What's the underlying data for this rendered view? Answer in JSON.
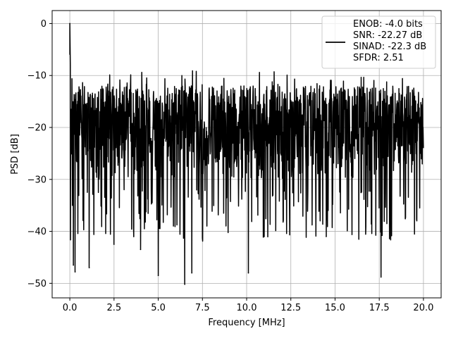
{
  "chart_data": {
    "type": "line",
    "title": "",
    "xlabel": "Frequency [MHz]",
    "ylabel": "PSD [dB]",
    "xlim": [
      -1.0,
      21.0
    ],
    "ylim": [
      -52.8,
      2.5
    ],
    "grid": true,
    "x_ticks": [
      0.0,
      2.5,
      5.0,
      7.5,
      10.0,
      12.5,
      15.0,
      17.5,
      20.0
    ],
    "x_tick_labels": [
      "0.0",
      "2.5",
      "5.0",
      "7.5",
      "10.0",
      "12.5",
      "15.0",
      "17.5",
      "20.0"
    ],
    "y_ticks": [
      0,
      -10,
      -20,
      -30,
      -40,
      -50
    ],
    "y_tick_labels": [
      "0",
      "−10",
      "−20",
      "−30",
      "−40",
      "−50"
    ],
    "legend_position": "top-right",
    "legend": {
      "line_color": "#000000",
      "lines": [
        "ENOB: -4.0 bits",
        "SNR: -22.27 dB",
        "SINAD: -22.3 dB",
        "SFDR: 2.51"
      ]
    },
    "series": [
      {
        "color": "#000000",
        "x_range": [
          0.0,
          20.0
        ],
        "peak": {
          "x": 0.0,
          "y": 0.0
        },
        "noise_floor_band": [
          -30.0,
          -12.0
        ],
        "notable_dips": [
          {
            "x": 0.2,
            "y": -46.5
          },
          {
            "x": 0.3,
            "y": -47.8
          },
          {
            "x": 1.1,
            "y": -47.0
          },
          {
            "x": 2.5,
            "y": -42.5
          },
          {
            "x": 4.0,
            "y": -43.5
          },
          {
            "x": 5.0,
            "y": -48.5
          },
          {
            "x": 6.5,
            "y": -50.2
          },
          {
            "x": 6.9,
            "y": -48.0
          },
          {
            "x": 10.1,
            "y": -48.0
          },
          {
            "x": 14.5,
            "y": -41.0
          },
          {
            "x": 17.6,
            "y": -48.8
          }
        ]
      }
    ]
  }
}
